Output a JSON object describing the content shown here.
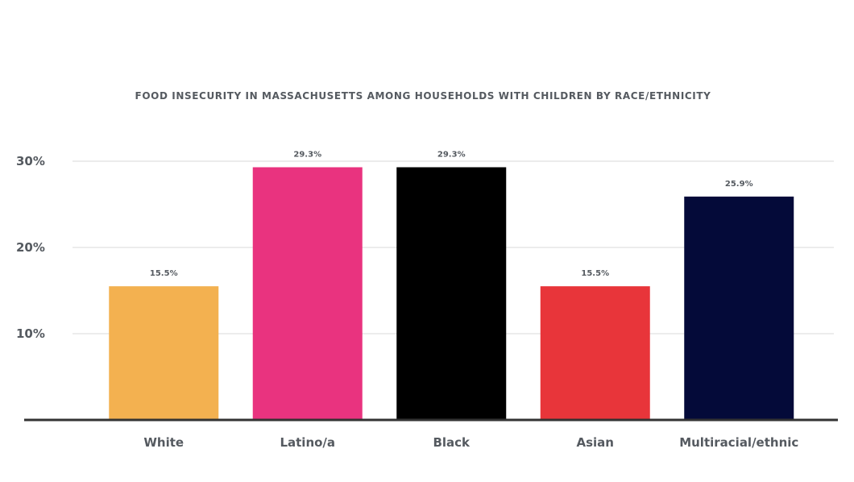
{
  "chart_data": {
    "type": "bar",
    "title": "FOOD INSECURITY IN MASSACHUSETTS AMONG HOUSEHOLDS WITH CHILDREN BY RACE/ETHNICITY",
    "categories": [
      "White",
      "Latino/a",
      "Black",
      "Asian",
      "Multiracial/ethnic"
    ],
    "values": [
      15.5,
      29.3,
      29.3,
      15.5,
      25.9
    ],
    "data_labels": [
      "15.5%",
      "29.3%",
      "29.3%",
      "15.5%",
      "25.9%"
    ],
    "colors": [
      "#f3b150",
      "#e9337f",
      "#000000",
      "#e8353a",
      "#040a39"
    ],
    "yticks": [
      10,
      20,
      30
    ],
    "ytick_labels": [
      "10%",
      "20%",
      "30%"
    ],
    "ylim": [
      0,
      30
    ],
    "grid": true,
    "legend": "none"
  }
}
